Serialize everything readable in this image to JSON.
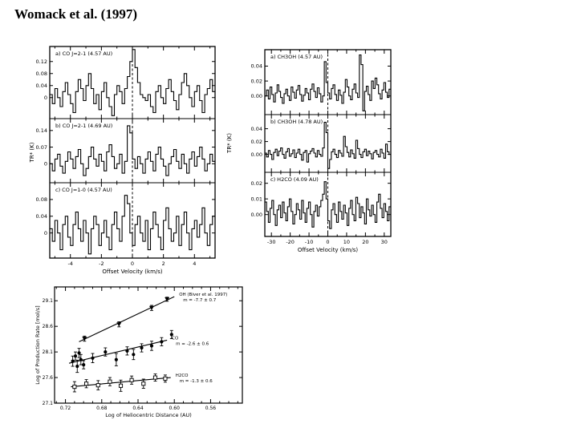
{
  "page": {
    "title": "Womack et al. (1997)",
    "background": "#ffffff",
    "text_color": "#000000"
  },
  "chart_data": [
    {
      "id": "co_spectra",
      "type": "line",
      "subtype": "spectra-histogram",
      "xlabel": "Offset Velocity (km/s)",
      "ylabel": "TR* (K)",
      "x_ticks": [
        "-4",
        "-2",
        "0",
        "2",
        "4"
      ],
      "xlim": [
        -5.33,
        5.33
      ],
      "x_minor_step": 1,
      "zero_line_x": 0,
      "panels": [
        {
          "label": "a) CO J=2-1 (4.57 AU)",
          "y_ticks": [
            "0.12",
            "0.08",
            "0.04",
            "0"
          ],
          "ylim": [
            -0.07,
            0.17
          ],
          "values": [
            0.01,
            -0.02,
            0.03,
            0.0,
            -0.03,
            0.02,
            0.05,
            0.01,
            -0.02,
            -0.05,
            0.02,
            0.06,
            0.03,
            -0.01,
            0.04,
            0.08,
            0.03,
            -0.02,
            0.01,
            -0.04,
            0.02,
            0.05,
            0.0,
            -0.03,
            -0.06,
            0.01,
            0.04,
            0.02,
            -0.02,
            0.03,
            0.07,
            0.12,
            0.16,
            0.1,
            0.05,
            0.01,
            0.0,
            -0.01,
            0.01,
            -0.03,
            -0.05,
            0.02,
            0.04,
            0.0,
            -0.02,
            0.03,
            0.06,
            0.02,
            -0.01,
            -0.04,
            0.01,
            0.05,
            0.08,
            0.04,
            0.0,
            -0.03,
            0.02,
            0.04,
            -0.01,
            -0.05,
            0.01,
            0.03,
            0.06,
            0.02
          ]
        },
        {
          "label": "b) CO J=2-1 (4.69 AU)",
          "y_ticks": [
            "0.14",
            "0.07",
            "0"
          ],
          "ylim": [
            -0.08,
            0.19
          ],
          "values": [
            0.0,
            -0.03,
            0.02,
            0.04,
            -0.01,
            -0.04,
            0.01,
            0.05,
            0.02,
            -0.02,
            0.03,
            0.06,
            0.0,
            -0.05,
            -0.02,
            0.03,
            0.07,
            0.02,
            -0.01,
            0.04,
            0.01,
            -0.03,
            0.05,
            0.08,
            0.03,
            -0.02,
            0.0,
            0.04,
            -0.04,
            0.01,
            0.16,
            0.13,
            0.02,
            -0.02,
            0.03,
            0.0,
            -0.04,
            0.02,
            0.05,
            0.01,
            -0.03,
            0.04,
            0.07,
            0.02,
            -0.01,
            -0.05,
            0.0,
            0.03,
            0.06,
            0.01,
            -0.02,
            0.04,
            0.0,
            -0.04,
            0.02,
            0.05,
            -0.01,
            0.03,
            0.07,
            0.02,
            -0.03,
            0.0,
            0.04,
            0.01
          ]
        },
        {
          "label": "c) CO J=1-0 (4.57 AU)",
          "y_ticks": [
            "0.08",
            "0.04",
            "0"
          ],
          "ylim": [
            -0.06,
            0.12
          ],
          "values": [
            0.01,
            -0.02,
            0.03,
            0.0,
            -0.04,
            0.02,
            0.04,
            -0.01,
            -0.03,
            0.02,
            0.05,
            0.01,
            -0.02,
            0.03,
            0.0,
            -0.05,
            0.01,
            0.04,
            0.02,
            -0.03,
            0.0,
            0.03,
            -0.01,
            -0.04,
            0.02,
            0.05,
            0.01,
            -0.02,
            0.04,
            0.09,
            0.07,
            0.0,
            -0.03,
            0.02,
            0.04,
            0.0,
            -0.02,
            0.03,
            -0.04,
            0.01,
            0.05,
            0.02,
            -0.01,
            -0.04,
            0.03,
            0.06,
            0.01,
            -0.02,
            0.0,
            0.04,
            -0.03,
            0.02,
            0.05,
            0.0,
            -0.04,
            0.01,
            0.03,
            -0.01,
            0.02,
            0.06,
            0.0,
            -0.03,
            0.02,
            0.04
          ]
        }
      ]
    },
    {
      "id": "ch3oh_h2co_spectra",
      "type": "line",
      "subtype": "spectra-histogram",
      "xlabel": "Offset Velocity (km/s)",
      "ylabel": "TR* (K)",
      "x_ticks": [
        "-30",
        "-20",
        "-10",
        "0",
        "10",
        "20",
        "30"
      ],
      "xlim": [
        -33.5,
        33.5
      ],
      "x_minor_step": 5,
      "zero_line_x": 0,
      "panels": [
        {
          "label": "a) CH3OH (4.57 AU)",
          "y_ticks": [
            "0.04",
            "0.02",
            "0.00"
          ],
          "ylim": [
            -0.025,
            0.062
          ],
          "values": [
            0.0,
            0.008,
            -0.004,
            0.012,
            0.002,
            -0.008,
            0.004,
            0.015,
            0.006,
            -0.002,
            -0.01,
            0.003,
            0.009,
            0.0,
            -0.006,
            0.012,
            0.005,
            -0.003,
            0.008,
            0.014,
            0.002,
            -0.007,
            0.001,
            0.01,
            0.004,
            -0.005,
            0.009,
            0.016,
            0.006,
            -0.002,
            0.011,
            0.003,
            -0.008,
            0.0,
            0.046,
            0.018,
            0.004,
            -0.004,
            0.01,
            0.015,
            0.002,
            -0.006,
            0.008,
            0.001,
            -0.01,
            0.005,
            0.022,
            0.012,
            0.0,
            -0.005,
            0.009,
            0.016,
            0.004,
            -0.002,
            0.055,
            0.042,
            -0.02,
            0.006,
            0.013,
            0.002,
            -0.006,
            0.02,
            0.01,
            0.024,
            0.015,
            0.003,
            -0.004,
            0.008,
            0.018,
            0.005,
            -0.002,
            0.009
          ]
        },
        {
          "label": "b) CH3OH (4.78 AU)",
          "y_ticks": [
            "0.04",
            "0.02",
            "0.00"
          ],
          "ylim": [
            -0.028,
            0.062
          ],
          "values": [
            0.002,
            -0.004,
            0.006,
            0.0,
            -0.008,
            0.003,
            0.008,
            -0.002,
            0.005,
            0.01,
            0.0,
            -0.006,
            0.004,
            0.009,
            -0.003,
            0.001,
            0.007,
            -0.005,
            0.002,
            0.008,
            0.0,
            -0.009,
            0.003,
            0.006,
            -0.012,
            0.001,
            0.005,
            0.009,
            0.002,
            -0.004,
            0.006,
            0.0,
            -0.003,
            0.01,
            0.05,
            0.034,
            -0.022,
            -0.008,
            0.004,
            0.008,
            0.0,
            -0.005,
            0.006,
            0.002,
            -0.003,
            0.028,
            0.012,
            0.003,
            -0.004,
            0.007,
            0.001,
            -0.006,
            0.022,
            0.009,
            0.0,
            -0.005,
            0.004,
            0.008,
            -0.002,
            0.005,
            0.001,
            -0.007,
            0.003,
            0.006,
            0.0,
            -0.004,
            0.008,
            0.002,
            -0.006,
            0.016,
            0.004,
            0.0
          ]
        },
        {
          "label": "c) H2CO (4.09 AU)",
          "y_ticks": [
            "0.02",
            "0.01",
            "0.00"
          ],
          "ylim": [
            -0.014,
            0.027
          ],
          "values": [
            0.008,
            0.002,
            -0.005,
            0.004,
            0.009,
            0.0,
            -0.007,
            0.003,
            0.006,
            -0.002,
            0.008,
            0.001,
            -0.004,
            0.005,
            0.01,
            0.002,
            -0.006,
            0.0,
            0.007,
            0.003,
            -0.003,
            0.009,
            0.001,
            -0.005,
            0.004,
            0.008,
            0.0,
            -0.008,
            0.002,
            0.006,
            -0.001,
            0.005,
            0.009,
            0.013,
            0.021,
            0.01,
            -0.004,
            -0.009,
            0.003,
            0.007,
            0.0,
            -0.005,
            0.008,
            0.002,
            -0.003,
            0.006,
            0.001,
            -0.007,
            0.004,
            0.009,
            0.0,
            -0.004,
            0.011,
            0.007,
            -0.002,
            0.005,
            0.001,
            -0.006,
            0.01,
            0.003,
            -0.001,
            0.006,
            0.0,
            -0.005,
            0.008,
            0.013,
            0.004,
            -0.002,
            0.007,
            0.002,
            -0.004,
            0.005
          ]
        }
      ]
    },
    {
      "id": "production_rates",
      "type": "scatter",
      "xlabel": "Log of Heliocentric Distance (AU)",
      "ylabel": "Log of Production Rate [mol/s]",
      "x_ticks": [
        "0.72",
        "0.68",
        "0.64",
        "0.60",
        "0.56"
      ],
      "x_reversed": true,
      "xlim": [
        0.732,
        0.525
      ],
      "x_minor_step": 0.01,
      "y_ticks": [
        "29.1",
        "28.6",
        "28.1",
        "27.6",
        "27.1"
      ],
      "ylim": [
        27.1,
        29.37
      ],
      "series": [
        {
          "name": "OH",
          "marker": "triangle-down",
          "annotation": [
            "OH (Biver et al. 1997)",
            "m = -7.7 ± 0.7"
          ],
          "fit": [
            [
              0.705,
              28.3
            ],
            [
              0.6,
              29.18
            ]
          ],
          "points": [
            [
              0.699,
              28.36,
              0.05
            ],
            [
              0.661,
              28.64,
              0.05
            ],
            [
              0.625,
              28.96,
              0.05
            ],
            [
              0.608,
              29.13,
              0.04
            ]
          ]
        },
        {
          "name": "CO",
          "marker": "circle",
          "annotation": [
            "CO",
            "m = -2.6 ± 0.6"
          ],
          "fit": [
            [
              0.716,
              27.88
            ],
            [
              0.608,
              28.33
            ]
          ],
          "points": [
            [
              0.712,
              27.92,
              0.1
            ],
            [
              0.709,
              28.02,
              0.08
            ],
            [
              0.707,
              27.82,
              0.12
            ],
            [
              0.705,
              28.08,
              0.09
            ],
            [
              0.703,
              27.95,
              0.1
            ],
            [
              0.7,
              27.85,
              0.08
            ],
            [
              0.69,
              27.98,
              0.09
            ],
            [
              0.676,
              28.1,
              0.08
            ],
            [
              0.664,
              27.95,
              0.12
            ],
            [
              0.652,
              28.12,
              0.08
            ],
            [
              0.645,
              28.05,
              0.1
            ],
            [
              0.636,
              28.18,
              0.08
            ],
            [
              0.625,
              28.22,
              0.09
            ],
            [
              0.614,
              28.3,
              0.08
            ],
            [
              0.603,
              28.44,
              0.08
            ]
          ]
        },
        {
          "name": "H2CO",
          "marker": "square-open",
          "annotation": [
            "H2CO",
            "m = -1.3 ± 0.6"
          ],
          "fit": [
            [
              0.714,
              27.42
            ],
            [
              0.604,
              27.6
            ]
          ],
          "points": [
            [
              0.71,
              27.42,
              0.1
            ],
            [
              0.697,
              27.48,
              0.08
            ],
            [
              0.684,
              27.45,
              0.09
            ],
            [
              0.671,
              27.52,
              0.08
            ],
            [
              0.659,
              27.44,
              0.11
            ],
            [
              0.647,
              27.55,
              0.08
            ],
            [
              0.634,
              27.48,
              0.09
            ],
            [
              0.621,
              27.6,
              0.07
            ],
            [
              0.61,
              27.58,
              0.07
            ]
          ]
        }
      ]
    }
  ]
}
